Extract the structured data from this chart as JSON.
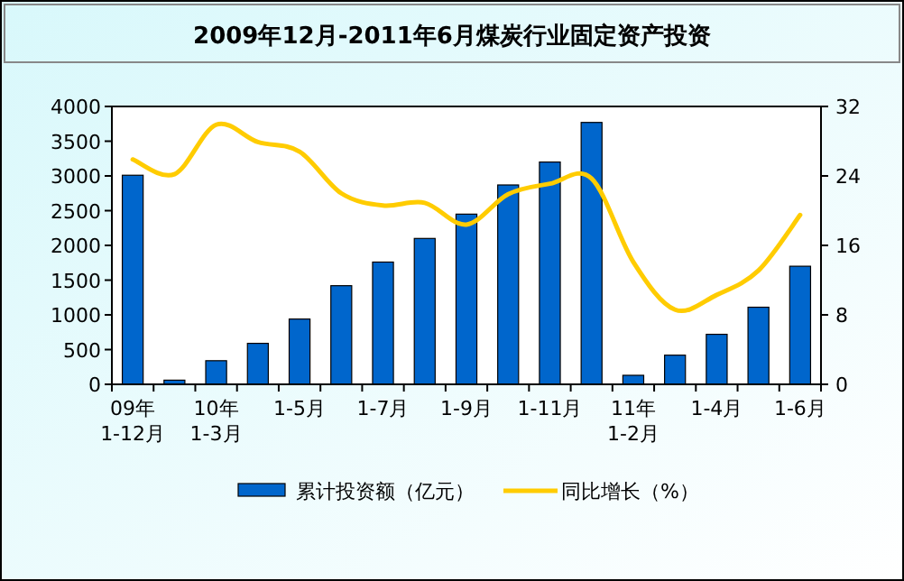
{
  "chart_data": {
    "type": "bar",
    "title": "2009年12月-2011年6月煤炭行业固定资产投资",
    "categories": [
      "09年 1-12月",
      null,
      "10年 1-3月",
      null,
      "1-5月",
      null,
      "1-7月",
      null,
      "1-9月",
      null,
      "1-11月",
      null,
      "11年 1-2月",
      null,
      "1-4月",
      null,
      "1-6月"
    ],
    "series": [
      {
        "name": "累计投资额（亿元）",
        "color": "#0066cc",
        "values": [
          3010,
          60,
          340,
          590,
          940,
          1420,
          1760,
          2100,
          2450,
          2870,
          3200,
          3770,
          130,
          420,
          720,
          1110,
          1700
        ]
      },
      {
        "name": "同比增长（%）",
        "type": "line",
        "axis": "y2",
        "color": "#ffcc00",
        "values": [
          25.9,
          24.2,
          29.9,
          27.9,
          26.8,
          22.0,
          20.6,
          20.9,
          18.4,
          21.9,
          23.1,
          23.7,
          14.1,
          8.6,
          10.3,
          13.1,
          19.5
        ]
      }
    ],
    "ylim": [
      0,
      4000
    ],
    "yticks": [
      0,
      500,
      1000,
      1500,
      2000,
      2500,
      3000,
      3500,
      4000
    ],
    "y2lim": [
      0,
      32
    ],
    "y2ticks": [
      0,
      8,
      16,
      24,
      32
    ],
    "legend": "bottom",
    "grid": false
  }
}
